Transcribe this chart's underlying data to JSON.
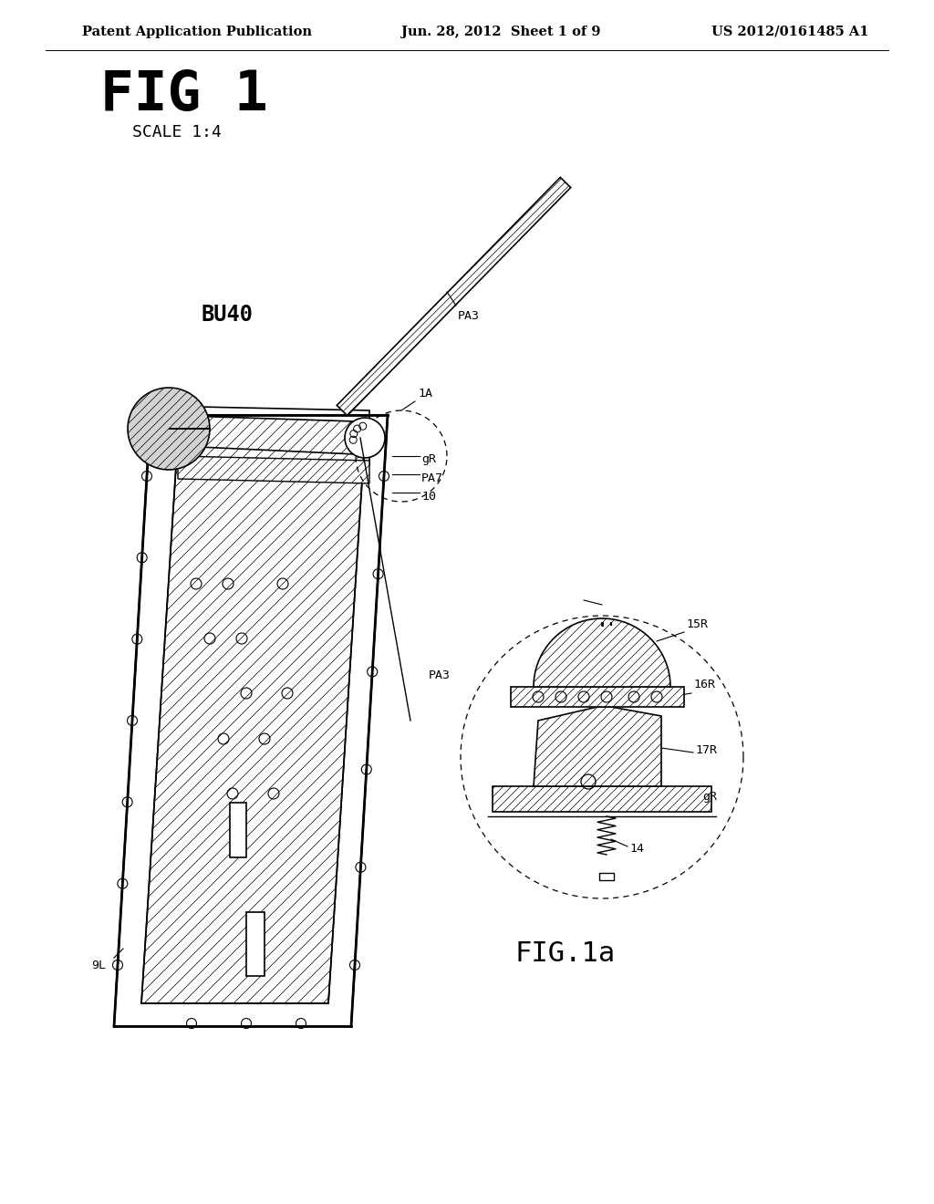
{
  "background_color": "#ffffff",
  "header_left": "Patent Application Publication",
  "header_center": "Jun. 28, 2012  Sheet 1 of 9",
  "header_right": "US 2012/0161485 A1",
  "header_fontsize": 10.5,
  "fig_label": "FIG 1",
  "fig_label_fontsize": 44,
  "scale_label": "SCALE 1:4",
  "scale_label_fontsize": 13,
  "fig1a_label": "FIG.1a",
  "fig1a_fontsize": 22
}
